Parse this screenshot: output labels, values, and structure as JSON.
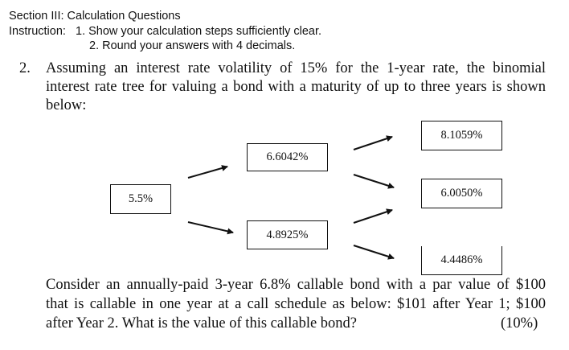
{
  "header": {
    "section_title": "Section III:  Calculation Questions",
    "instruction_label": "Instruction:",
    "instruction_1": "1. Show your calculation steps sufficiently clear.",
    "instruction_2": "2. Round your answers with 4 decimals."
  },
  "question": {
    "number": "2.",
    "intro_lines": [
      "Assuming an interest rate volatility of 15% for the 1-year rate, the binomial",
      "interest rate tree for valuing a bond with a maturity of up to three years is shown",
      "below:"
    ],
    "tree": {
      "year0": "5.5%",
      "year1_up": "6.6042%",
      "year1_down": "4.8925%",
      "year2_up": "8.1059%",
      "year2_mid": "6.0050%",
      "year2_down": "4.4486%"
    },
    "body_lines": [
      "Consider an annually-paid 3-year 6.8% callable bond with a par value of $100",
      "that is callable in one year at a call schedule as below: $101 after Year 1; $100",
      "after Year 2. What is the value of this callable bond?"
    ],
    "marks": "(10%)"
  }
}
